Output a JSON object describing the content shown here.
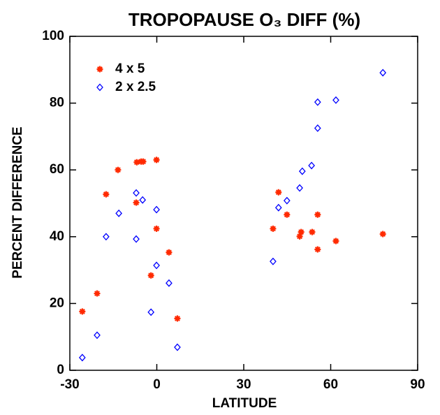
{
  "chart_data": {
    "type": "scatter",
    "title": "TROPOPAUSE O₃ DIFF (%)",
    "x_label": "LATITUDE",
    "y_label": "PERCENT DIFFERENCE",
    "xlim": [
      -30,
      90
    ],
    "ylim": [
      0,
      100
    ],
    "xticks": [
      -30,
      0,
      30,
      60,
      90
    ],
    "yticks": [
      0,
      20,
      40,
      60,
      80,
      100
    ],
    "legend": "upper left",
    "series": [
      {
        "name": "4 x 5",
        "color": "#ff2a00",
        "marker": "star",
        "x": [
          -25.7,
          -20.6,
          -17.5,
          -13.4,
          -7.1,
          -6.9,
          -5.4,
          -4.7,
          -0.1,
          -0.1,
          -2.0,
          4.2,
          7.1,
          40.1,
          42.0,
          44.9,
          49.3,
          49.8,
          53.6,
          55.5,
          55.5,
          61.8,
          78.0
        ],
        "values": [
          17.6,
          23,
          52.7,
          60,
          50.2,
          62.3,
          62.5,
          62.5,
          63,
          42.4,
          28.4,
          35.3,
          15.5,
          42.4,
          53.3,
          46.6,
          40.1,
          41.4,
          41.4,
          46.6,
          36.2,
          38.7,
          40.8
        ]
      },
      {
        "name": "2 x 2.5",
        "color": "#0000ff",
        "marker": "diamond",
        "x": [
          -25.7,
          -20.6,
          -17.5,
          -13.1,
          -7.1,
          -7.1,
          -4.9,
          -0.1,
          -0.1,
          -2.0,
          4.2,
          7.1,
          40.1,
          42.0,
          44.9,
          49.3,
          50.2,
          53.4,
          55.5,
          55.5,
          61.8,
          78.0
        ],
        "values": [
          3.8,
          10.5,
          40,
          47,
          53.1,
          39.3,
          51,
          48.1,
          31.4,
          17.4,
          26.1,
          6.9,
          32.6,
          48.7,
          50.8,
          54.6,
          59.6,
          61.3,
          80.3,
          72.5,
          80.9,
          89.1
        ]
      }
    ]
  }
}
